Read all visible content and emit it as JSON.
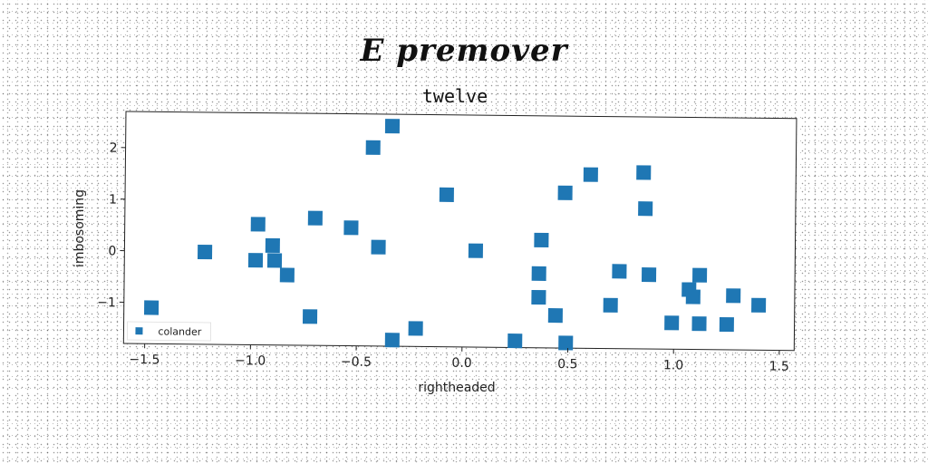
{
  "figure": {
    "suptitle": "E premover"
  },
  "chart_data": {
    "type": "scatter",
    "title": "twelve",
    "xlabel": "rightheaded",
    "ylabel": "imbosoming",
    "xlim": [
      -1.6,
      1.57
    ],
    "ylim": [
      -1.8,
      2.7
    ],
    "xticks": [
      -1.5,
      -1.0,
      -0.5,
      0.0,
      0.5,
      1.0,
      1.5
    ],
    "xtick_labels": [
      "−1.5",
      "−1.0",
      "−0.5",
      "0.0",
      "0.5",
      "1.0",
      "1.5"
    ],
    "yticks": [
      -1,
      0,
      1,
      2
    ],
    "ytick_labels": [
      "−1",
      "0",
      "1",
      "2"
    ],
    "grid": false,
    "legend": {
      "placement": "lower-left",
      "entries": [
        "colander"
      ]
    },
    "series": [
      {
        "name": "colander",
        "color": "#1f77b4",
        "marker": "square",
        "points": [
          [
            -1.47,
            -1.1
          ],
          [
            -1.22,
            -0.01
          ],
          [
            -0.97,
            0.54
          ],
          [
            -0.98,
            -0.16
          ],
          [
            -0.9,
            0.13
          ],
          [
            -0.89,
            -0.16
          ],
          [
            -0.83,
            -0.44
          ],
          [
            -0.72,
            -1.24
          ],
          [
            -0.7,
            0.67
          ],
          [
            -0.53,
            0.49
          ],
          [
            -0.43,
            2.05
          ],
          [
            -0.4,
            0.12
          ],
          [
            -0.34,
            2.47
          ],
          [
            -0.33,
            -1.68
          ],
          [
            -0.22,
            -1.45
          ],
          [
            -0.08,
            1.15
          ],
          [
            0.06,
            0.07
          ],
          [
            0.25,
            -1.67
          ],
          [
            0.36,
            -0.82
          ],
          [
            0.36,
            -0.36
          ],
          [
            0.37,
            0.29
          ],
          [
            0.44,
            -1.17
          ],
          [
            0.48,
            1.21
          ],
          [
            0.49,
            -1.7
          ],
          [
            0.6,
            1.57
          ],
          [
            0.7,
            -0.96
          ],
          [
            0.74,
            -0.3
          ],
          [
            0.85,
            1.62
          ],
          [
            0.86,
            0.92
          ],
          [
            0.88,
            -0.36
          ],
          [
            0.99,
            -1.29
          ],
          [
            1.07,
            -0.64
          ],
          [
            1.09,
            -0.78
          ],
          [
            1.12,
            -1.3
          ],
          [
            1.12,
            -0.36
          ],
          [
            1.25,
            -1.31
          ],
          [
            1.28,
            -0.75
          ],
          [
            1.4,
            -0.93
          ]
        ]
      }
    ]
  }
}
